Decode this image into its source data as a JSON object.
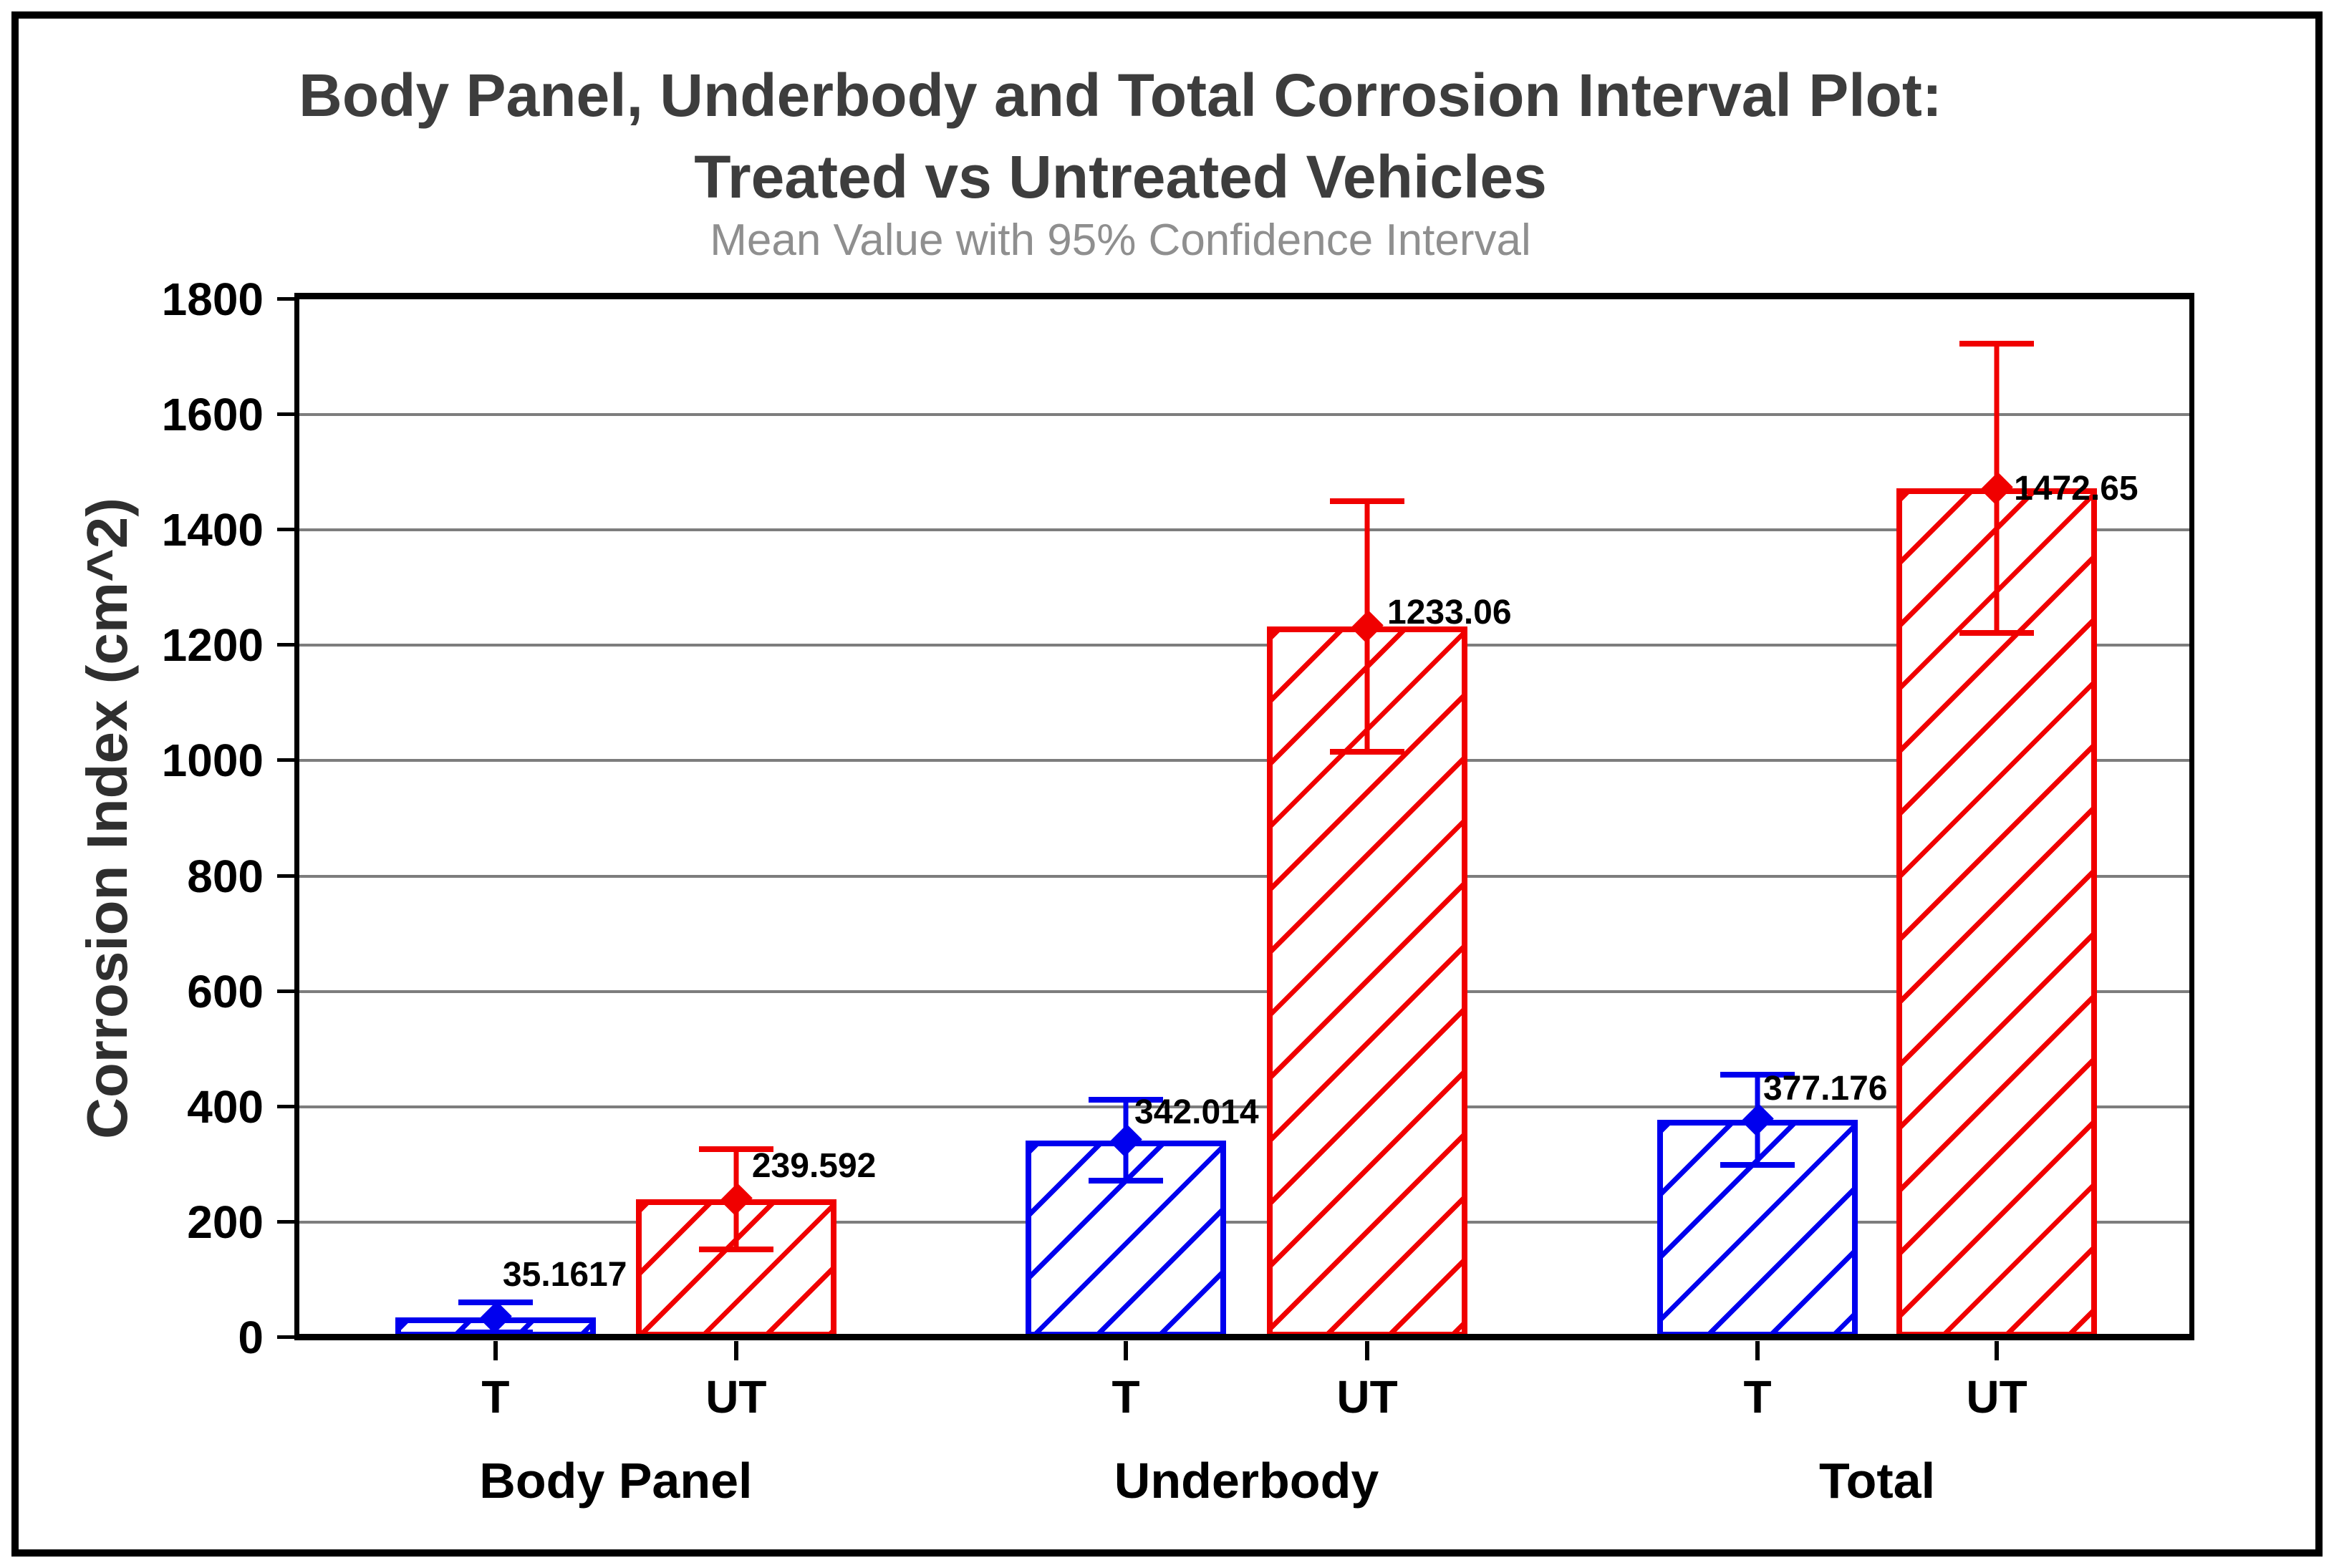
{
  "title_line1": "Body Panel, Underbody and Total Corrosion Interval Plot:",
  "title_line2": "Treated vs Untreated Vehicles",
  "subtitle": "Mean Value with 95% Confidence Interval",
  "chart_data": {
    "type": "bar",
    "title": "Body Panel, Underbody and Total Corrosion Interval Plot: Treated vs Untreated Vehicles",
    "subtitle": "Mean Value with 95% Confidence Interval",
    "ylabel": "Corrosion Index (cm^2)",
    "xlabel": "",
    "ylim": [
      0,
      1800
    ],
    "ytick_step": 200,
    "grid": "horizontal",
    "gridline_color": "#7d7d7d",
    "legend_position": "none",
    "error_bars": "95% confidence interval",
    "colors": {
      "treated": "#0000ee",
      "untreated": "#f00000"
    },
    "bar_width_pct": 10.61,
    "groups": [
      {
        "label": "Body Panel",
        "bars": [
          {
            "label": "T",
            "series": "Treated",
            "mean": 35.1617,
            "display": "35.1617",
            "ci_low": 9,
            "ci_high": 61,
            "x_pct": 10.38,
            "label_dx": 10,
            "label_dy": 35
          },
          {
            "label": "UT",
            "series": "Untreated",
            "mean": 239.592,
            "display": "239.592",
            "ci_low": 153,
            "ci_high": 326,
            "x_pct": 23.11,
            "label_dx": 22,
            "label_dy": 22
          }
        ]
      },
      {
        "label": "Underbody",
        "bars": [
          {
            "label": "T",
            "series": "Treated",
            "mean": 342.014,
            "display": "342.014",
            "ci_low": 272,
            "ci_high": 412,
            "x_pct": 43.73,
            "label_dx": 12,
            "label_dy": 15
          },
          {
            "label": "UT",
            "series": "Untreated",
            "mean": 1233.06,
            "display": "1233.06",
            "ci_low": 1016,
            "ci_high": 1450,
            "x_pct": 56.5,
            "label_dx": 28,
            "label_dy": -5
          }
        ]
      },
      {
        "label": "Total",
        "bars": [
          {
            "label": "T",
            "series": "Treated",
            "mean": 377.176,
            "display": "377.176",
            "ci_low": 299,
            "ci_high": 455,
            "x_pct": 77.15,
            "label_dx": 8,
            "label_dy": 19
          },
          {
            "label": "UT",
            "series": "Untreated",
            "mean": 1472.65,
            "display": "1472.65",
            "ci_low": 1222,
            "ci_high": 1723,
            "x_pct": 89.81,
            "label_dx": 24,
            "label_dy": -25
          }
        ]
      }
    ]
  }
}
